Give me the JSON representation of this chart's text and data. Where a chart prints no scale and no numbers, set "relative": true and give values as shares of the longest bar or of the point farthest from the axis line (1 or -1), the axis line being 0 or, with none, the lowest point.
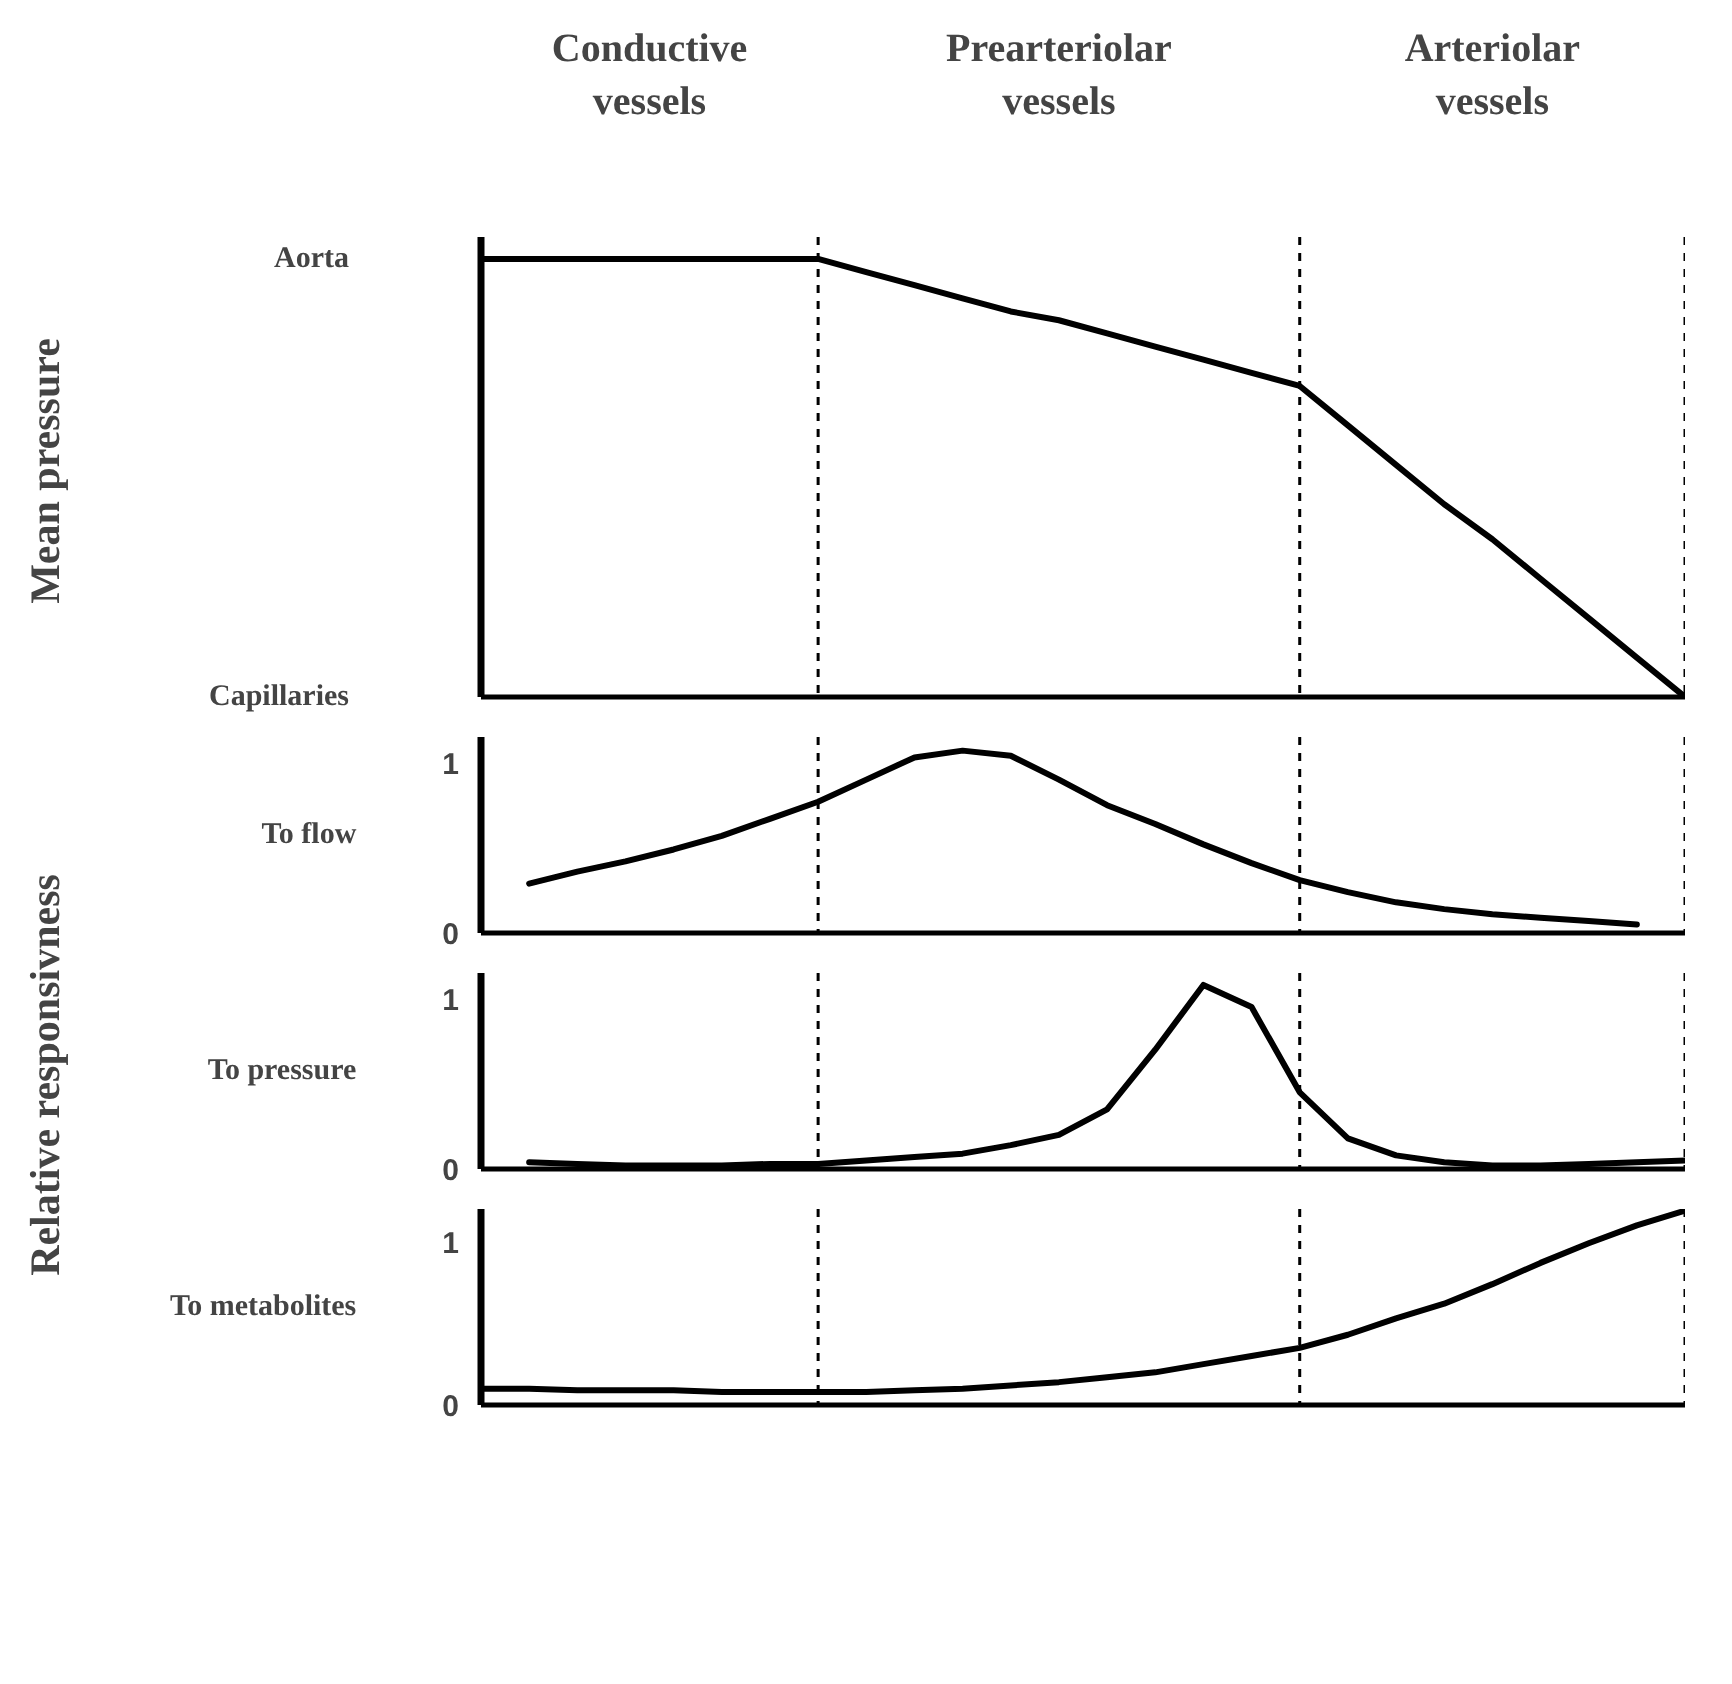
{
  "chart_data": [
    {
      "type": "line",
      "relative": true,
      "ylabel": "Mean pressure",
      "annotations": [
        "Conductive vessels",
        "Prearteriolar vessels",
        "Arteriolar vessels",
        "Aorta",
        "Capillaries"
      ],
      "categories": [
        null,
        null,
        null,
        null,
        null,
        null,
        null,
        null,
        null,
        null,
        null,
        null,
        null,
        null,
        null,
        null,
        null,
        null,
        null,
        null,
        null,
        null,
        null,
        null,
        null,
        null
      ],
      "tick_labels": false,
      "series": [
        {
          "color": "#000000",
          "values": [
            1,
            1,
            1,
            1,
            1,
            1,
            1,
            1,
            0.97,
            0.94,
            0.91,
            0.88,
            0.86,
            0.83,
            0.8,
            0.77,
            0.74,
            0.71,
            0.62,
            0.53,
            0.44,
            0.36,
            0.27,
            0.18,
            0.09,
            0
          ]
        }
      ]
    },
    {
      "type": "line",
      "title": "To flow",
      "ylabel": "Relative responsivness",
      "categories": [
        null,
        null,
        null,
        null,
        null,
        null,
        null,
        null,
        null,
        null,
        null,
        null,
        null,
        null,
        null,
        null,
        null,
        null,
        null,
        null,
        null,
        null,
        null,
        null,
        null,
        null
      ],
      "ylim": [
        0,
        1.15
      ],
      "yticks": [
        0,
        1
      ],
      "tick_labels": "y",
      "series": [
        {
          "color": "#000000",
          "values": [
            null,
            0.29,
            0.36,
            0.42,
            0.49,
            0.57,
            0.67,
            0.77,
            0.9,
            1.03,
            1.07,
            1.04,
            0.9,
            0.75,
            0.64,
            0.52,
            0.41,
            0.31,
            0.24,
            0.18,
            0.14,
            0.11,
            0.09,
            0.07,
            0.05,
            null
          ]
        }
      ]
    },
    {
      "type": "line",
      "title": "To pressure",
      "categories": [
        null,
        null,
        null,
        null,
        null,
        null,
        null,
        null,
        null,
        null,
        null,
        null,
        null,
        null,
        null,
        null,
        null,
        null,
        null,
        null,
        null,
        null,
        null,
        null,
        null,
        null
      ],
      "ylim": [
        0,
        1.15
      ],
      "yticks": [
        0,
        1
      ],
      "tick_labels": "y",
      "series": [
        {
          "color": "#000000",
          "values": [
            null,
            0.04,
            0.03,
            0.02,
            0.02,
            0.02,
            0.03,
            0.03,
            0.05,
            0.07,
            0.09,
            0.14,
            0.2,
            0.35,
            0.7,
            1.08,
            0.95,
            0.45,
            0.18,
            0.08,
            0.04,
            0.02,
            0.02,
            0.03,
            0.04,
            0.05
          ]
        }
      ]
    },
    {
      "type": "line",
      "title": "To metabolites",
      "categories": [
        null,
        null,
        null,
        null,
        null,
        null,
        null,
        null,
        null,
        null,
        null,
        null,
        null,
        null,
        null,
        null,
        null,
        null,
        null,
        null,
        null,
        null,
        null,
        null,
        null,
        null
      ],
      "ylim": [
        0,
        1.2
      ],
      "yticks": [
        0,
        1
      ],
      "tick_labels": "y",
      "series": [
        {
          "color": "#000000",
          "values": [
            0.1,
            0.1,
            0.09,
            0.09,
            0.09,
            0.08,
            0.08,
            0.08,
            0.08,
            0.09,
            0.1,
            0.12,
            0.14,
            0.17,
            0.2,
            0.25,
            0.3,
            0.35,
            0.43,
            0.53,
            0.62,
            0.74,
            0.87,
            0.99,
            1.1,
            1.19
          ]
        }
      ]
    }
  ]
}
